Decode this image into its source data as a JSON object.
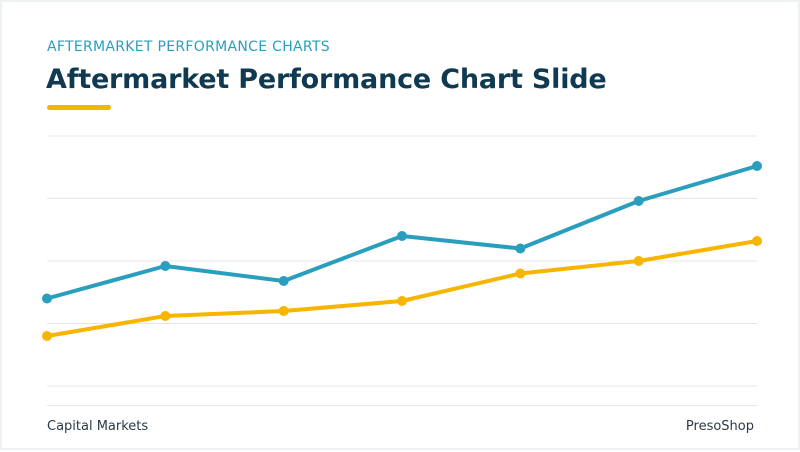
{
  "slide": {
    "kicker": "AFTERMARKET PERFORMANCE CHARTS",
    "title": "Aftermarket Performance Chart Slide",
    "footer_left": "Capital Markets",
    "footer_right": "PresoShop",
    "accent_color": "#f7b500"
  },
  "chart_data": {
    "type": "line",
    "x": [
      1,
      2,
      3,
      4,
      5,
      6,
      7
    ],
    "ylim": [
      0,
      100
    ],
    "grid": true,
    "series": [
      {
        "color": "#2a9fbd",
        "values": [
          35,
          48,
          42,
          60,
          55,
          74,
          88
        ]
      },
      {
        "color": "#f7b500",
        "values": [
          20,
          28,
          30,
          34,
          45,
          50,
          58
        ]
      }
    ]
  }
}
